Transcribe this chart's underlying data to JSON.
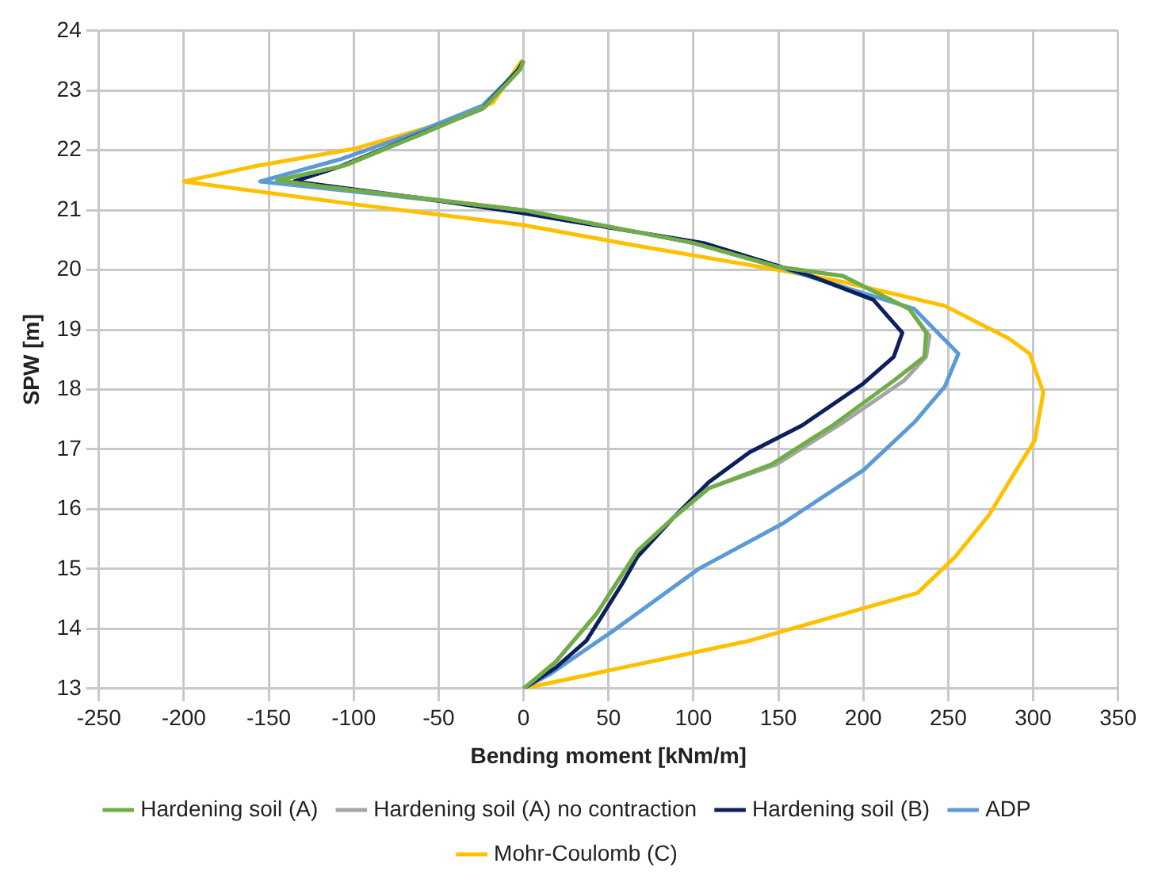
{
  "chart_data": {
    "type": "line",
    "xlabel": "Bending moment [kNm/m]",
    "ylabel": "SPW [m]",
    "xlim": [
      -250,
      350
    ],
    "xticks": [
      -250,
      -200,
      -150,
      -100,
      -50,
      0,
      50,
      100,
      150,
      200,
      250,
      300,
      350
    ],
    "ylim": [
      13,
      24
    ],
    "yticks": [
      13,
      14,
      15,
      16,
      17,
      18,
      19,
      20,
      21,
      22,
      23,
      24
    ],
    "grid": true,
    "legend": "bottom",
    "line_style": "solid",
    "series": [
      {
        "name": "Hardening soil (A)",
        "color": "#70ad47",
        "x": [
          0,
          19,
          43,
          67,
          88,
          109,
          146,
          182,
          218,
          236,
          237,
          227,
          188,
          150,
          100,
          0,
          -60,
          -120,
          -145,
          -105,
          -62,
          -23,
          -2,
          0
        ],
        "values": [
          13,
          13.45,
          14.25,
          15.3,
          15.85,
          16.35,
          16.75,
          17.4,
          18.15,
          18.55,
          18.95,
          19.35,
          19.9,
          20.05,
          20.45,
          21.0,
          21.2,
          21.4,
          21.5,
          21.75,
          22.25,
          22.72,
          23.35,
          23.5
        ]
      },
      {
        "name": "Hardening soil (A) no contraction",
        "color": "#a5a5a5",
        "x": [
          0,
          19,
          43,
          67,
          88,
          109,
          149,
          188,
          224,
          237,
          239,
          227,
          188,
          150,
          100,
          0,
          -60,
          -120,
          -145,
          -105,
          -62,
          -23,
          -2,
          0
        ],
        "values": [
          13,
          13.45,
          14.25,
          15.3,
          15.85,
          16.35,
          16.75,
          17.45,
          18.15,
          18.55,
          18.9,
          19.35,
          19.9,
          20.05,
          20.45,
          21.0,
          21.2,
          21.4,
          21.5,
          21.75,
          22.25,
          22.72,
          23.35,
          23.5
        ]
      },
      {
        "name": "Hardening soil (B)",
        "color": "#0d1f5c",
        "x": [
          0,
          19,
          37,
          58,
          67,
          88,
          109,
          133,
          164,
          200,
          218,
          223,
          206,
          169,
          106,
          31,
          0,
          -60,
          -135,
          -108,
          -63,
          -24,
          -3,
          0
        ],
        "values": [
          13,
          13.35,
          13.8,
          14.75,
          15.2,
          15.85,
          16.45,
          16.95,
          17.4,
          18.1,
          18.55,
          18.95,
          19.5,
          19.9,
          20.45,
          20.8,
          20.95,
          21.2,
          21.48,
          21.73,
          22.25,
          22.7,
          23.35,
          23.5
        ]
      },
      {
        "name": "ADP",
        "color": "#5b9bd5",
        "x": [
          0,
          16,
          52,
          103,
          152,
          200,
          230,
          248,
          256,
          230,
          150,
          100,
          0,
          -80,
          -155,
          -108,
          -63,
          -24,
          -3,
          0
        ],
        "values": [
          13,
          13.25,
          13.95,
          15.0,
          15.75,
          16.65,
          17.45,
          18.05,
          18.6,
          19.35,
          20.05,
          20.45,
          21.0,
          21.25,
          21.48,
          21.85,
          22.3,
          22.75,
          23.35,
          23.5
        ]
      },
      {
        "name": "Mohr-Coulomb (C)",
        "color": "#ffc000",
        "x": [
          0,
          133,
          232,
          254,
          274,
          290,
          301,
          306,
          298,
          286,
          248,
          188,
          150,
          58,
          0,
          -100,
          -200,
          -159,
          -99,
          -48,
          -18,
          -1
        ],
        "values": [
          13,
          13.8,
          14.6,
          15.2,
          15.9,
          16.65,
          17.15,
          17.95,
          18.6,
          18.85,
          19.4,
          19.8,
          20.0,
          20.45,
          20.75,
          21.1,
          21.48,
          21.73,
          22.03,
          22.45,
          22.8,
          23.5
        ]
      }
    ]
  }
}
